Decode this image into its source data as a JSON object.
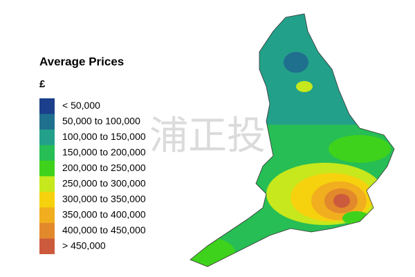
{
  "legend": {
    "title": "Average Prices",
    "unit": "£",
    "items": [
      {
        "label": "< 50,000",
        "color": "#1b3f8b"
      },
      {
        "label": "50,000 to 100,000",
        "color": "#1f6f8e"
      },
      {
        "label": "100,000 to 150,000",
        "color": "#23a08a"
      },
      {
        "label": "150,000 to 200,000",
        "color": "#27be55"
      },
      {
        "label": "200,000 to 250,000",
        "color": "#3fd21c"
      },
      {
        "label": "250,000 to 300,000",
        "color": "#c6e81c"
      },
      {
        "label": "300,000 to 350,000",
        "color": "#f6d20e"
      },
      {
        "label": "350,000 to 400,000",
        "color": "#f1ae1e"
      },
      {
        "label": "400,000 to 450,000",
        "color": "#e2892c"
      },
      {
        "label": "> 450,000",
        "color": "#cc5a3c"
      }
    ]
  },
  "watermark": "浦正投"
}
